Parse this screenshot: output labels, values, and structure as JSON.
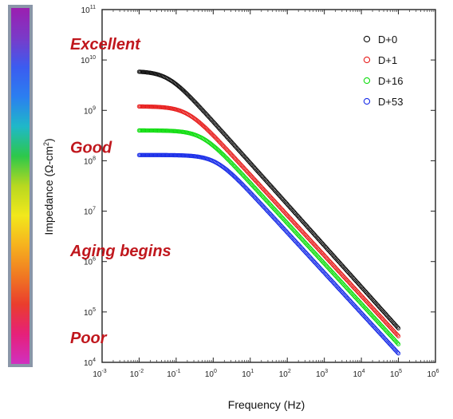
{
  "chart_data": {
    "type": "scatter",
    "xlabel": "Frequency (Hz)",
    "ylabel": "Impedance (Ω-cm²)",
    "x_scale": "log",
    "y_scale": "log",
    "xlim": [
      0.001,
      1000000
    ],
    "ylim": [
      10000,
      100000000000
    ],
    "x_ticks": [
      {
        "value": 0.001,
        "mant": "10",
        "exp": "-3"
      },
      {
        "value": 0.01,
        "mant": "10",
        "exp": "-2"
      },
      {
        "value": 0.1,
        "mant": "10",
        "exp": "-1"
      },
      {
        "value": 1,
        "mant": "10",
        "exp": "0"
      },
      {
        "value": 10,
        "mant": "10",
        "exp": "1"
      },
      {
        "value": 100,
        "mant": "10",
        "exp": "2"
      },
      {
        "value": 1000,
        "mant": "10",
        "exp": "3"
      },
      {
        "value": 10000,
        "mant": "10",
        "exp": "4"
      },
      {
        "value": 100000,
        "mant": "10",
        "exp": "5"
      },
      {
        "value": 1000000,
        "mant": "10",
        "exp": "6"
      }
    ],
    "y_ticks": [
      {
        "value": 10000,
        "mant": "10",
        "exp": "4"
      },
      {
        "value": 100000,
        "mant": "10",
        "exp": "5"
      },
      {
        "value": 1000000,
        "mant": "10",
        "exp": "6"
      },
      {
        "value": 10000000,
        "mant": "10",
        "exp": "7"
      },
      {
        "value": 100000000,
        "mant": "10",
        "exp": "8"
      },
      {
        "value": 1000000000,
        "mant": "10",
        "exp": "9"
      },
      {
        "value": 10000000000,
        "mant": "10",
        "exp": "10"
      },
      {
        "value": 100000000000,
        "mant": "10",
        "exp": "11"
      }
    ],
    "legend_position": "top-right",
    "series": [
      {
        "name": "D+0",
        "color": "#111111",
        "x_range": [
          0.01,
          100000
        ],
        "r0": 6000000000,
        "fc": 0.06,
        "rinf": 0,
        "slope": 0.82
      },
      {
        "name": "D+1",
        "color": "#e8201f",
        "x_range": [
          0.01,
          100000
        ],
        "r0": 1200000000,
        "fc": 0.2,
        "rinf": 0,
        "slope": 0.8
      },
      {
        "name": "D+16",
        "color": "#12dd12",
        "x_range": [
          0.01,
          100000
        ],
        "r0": 400000000,
        "fc": 0.5,
        "rinf": 0,
        "slope": 0.8
      },
      {
        "name": "D+53",
        "color": "#1a2ee8",
        "x_range": [
          0.01,
          100000
        ],
        "r0": 130000000,
        "fc": 1.2,
        "rinf": 0,
        "slope": 0.8
      }
    ],
    "annotations": [
      {
        "text": "Excellent",
        "y": 20000000000
      },
      {
        "text": "Good",
        "y": 180000000
      },
      {
        "text": "Aging begins",
        "y": 1600000
      },
      {
        "text": "Poor",
        "y": 30000
      }
    ]
  },
  "colorbar": {
    "stops": [
      "#9b1fb0",
      "#7a3ac8",
      "#3b5cf0",
      "#2b7ff0",
      "#1fb8c8",
      "#2dc84a",
      "#b8d820",
      "#f2e81c",
      "#f6b21e",
      "#f07a22",
      "#ea3d2d",
      "#e6207a",
      "#d030c0"
    ],
    "border": "#8a96a8"
  }
}
